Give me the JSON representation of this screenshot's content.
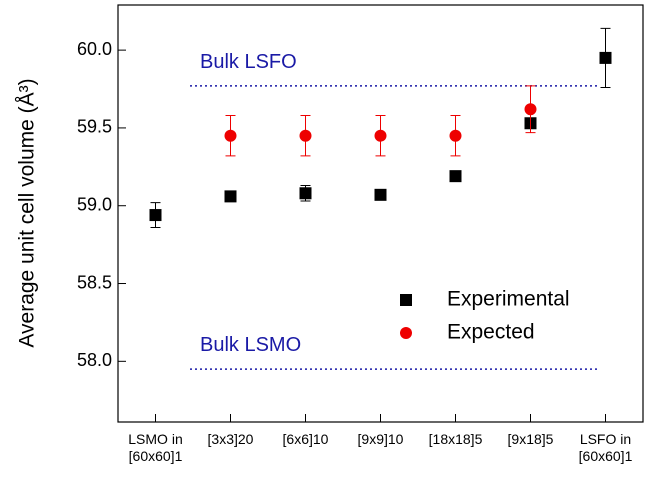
{
  "chart_data": {
    "type": "scatter",
    "y_label": "Average unit cell volume (Å³)",
    "categories": [
      "LSMO in\n[60x60]1",
      "[3x3]20",
      "[6x6]10",
      "[9x9]10",
      "[18x18]5",
      "[9x18]5",
      "LSFO in\n[60x60]1"
    ],
    "series": [
      {
        "name": "Experimental",
        "color": "#000000",
        "marker": "square",
        "values": [
          58.94,
          59.06,
          59.08,
          59.07,
          59.19,
          59.53,
          59.95
        ],
        "errors": [
          0.08,
          0.02,
          0.05,
          0.02,
          0.02,
          0.02,
          0.19
        ]
      },
      {
        "name": "Expected",
        "color": "#ee0000",
        "marker": "circle",
        "values": [
          null,
          59.45,
          59.45,
          59.45,
          59.45,
          59.62,
          null
        ],
        "errors": [
          null,
          0.13,
          0.13,
          0.13,
          0.13,
          0.15,
          null
        ]
      }
    ],
    "reference_lines": [
      {
        "label": "Bulk LSFO",
        "value": 59.77,
        "color": "#1a1aa6"
      },
      {
        "label": "Bulk LSMO",
        "value": 57.95,
        "color": "#1a1aa6"
      }
    ],
    "ylim": [
      57.61,
      60.29
    ],
    "yticks": [
      {
        "value": 58,
        "label": "58.0"
      },
      {
        "value": 58.5,
        "label": "58.5"
      },
      {
        "value": 59,
        "label": "59.0"
      },
      {
        "value": 59.5,
        "label": "59.5"
      },
      {
        "value": 60,
        "label": "60.0"
      }
    ],
    "legend": "lower right"
  }
}
